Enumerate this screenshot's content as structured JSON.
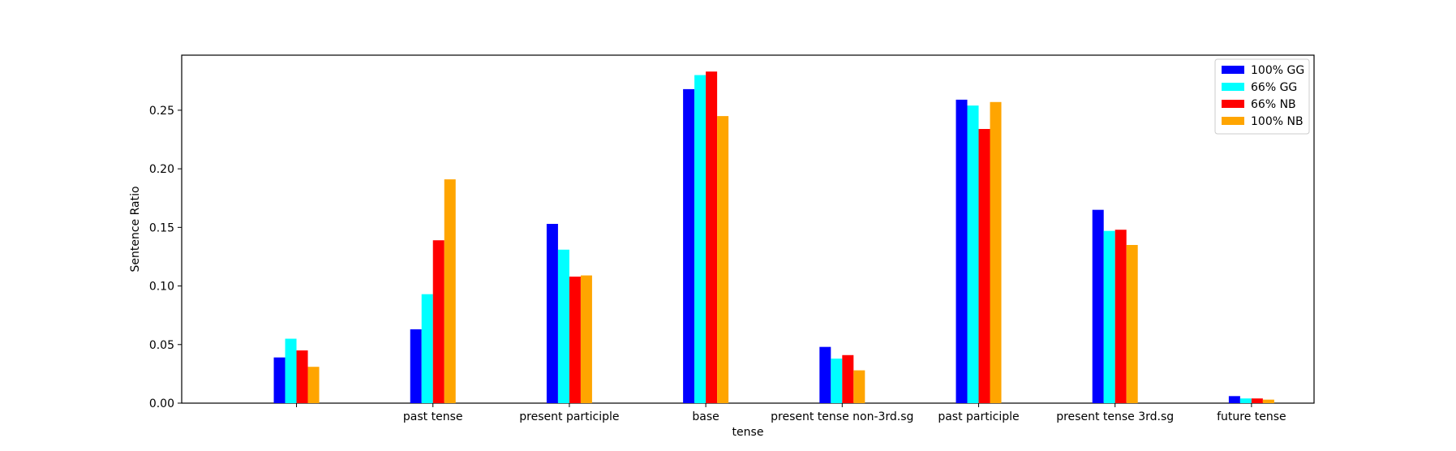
{
  "chart_data": {
    "type": "bar",
    "xlabel": "tense",
    "ylabel": "Sentence Ratio",
    "ylim": [
      0,
      0.297
    ],
    "yticks": [
      0.0,
      0.05,
      0.1,
      0.15,
      0.2,
      0.25
    ],
    "ytick_labels": [
      "0.00",
      "0.05",
      "0.10",
      "0.15",
      "0.20",
      "0.25"
    ],
    "categories": [
      "",
      "past tense",
      "present participle",
      "base",
      "present tense non-3rd.sg",
      "past participle",
      "present tense 3rd.sg",
      "future tense"
    ],
    "series": [
      {
        "name": "100% GG",
        "color": "#0000ff",
        "values": [
          0.039,
          0.063,
          0.153,
          0.268,
          0.048,
          0.259,
          0.165,
          0.006
        ]
      },
      {
        "name": "66% GG",
        "color": "#00ffff",
        "values": [
          0.055,
          0.093,
          0.131,
          0.28,
          0.038,
          0.254,
          0.147,
          0.004
        ]
      },
      {
        "name": "66% NB",
        "color": "#ff0000",
        "values": [
          0.045,
          0.139,
          0.108,
          0.283,
          0.041,
          0.234,
          0.148,
          0.004
        ]
      },
      {
        "name": "100% NB",
        "color": "#ffa500",
        "values": [
          0.031,
          0.191,
          0.109,
          0.245,
          0.028,
          0.257,
          0.135,
          0.003
        ]
      }
    ],
    "grid": false,
    "legend_position": "top-right"
  }
}
